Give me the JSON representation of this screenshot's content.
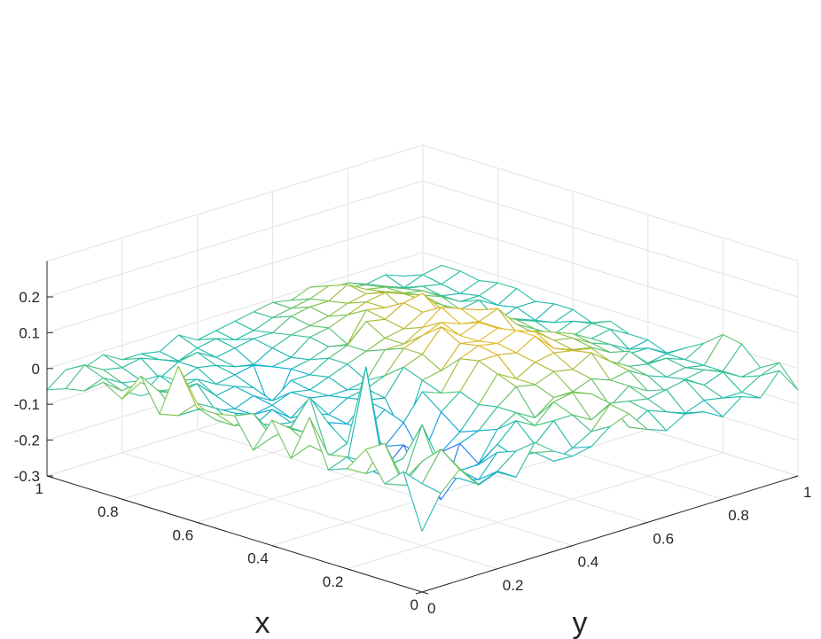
{
  "chart_data": {
    "type": "surface-mesh",
    "xlabel": "x",
    "ylabel": "y",
    "zlabel": "",
    "xlim": [
      0,
      1
    ],
    "ylim": [
      0,
      1
    ],
    "zlim": [
      -0.3,
      0.3
    ],
    "x_ticks": [
      "0",
      "0.2",
      "0.4",
      "0.6",
      "0.8",
      "1"
    ],
    "y_ticks": [
      "0",
      "0.2",
      "0.4",
      "0.6",
      "0.8",
      "1"
    ],
    "z_ticks": [
      "-0.3",
      "-0.2",
      "-0.1",
      "0",
      "0.1",
      "0.2"
    ],
    "grid": true,
    "colormap": "parula",
    "colormap_stops": [
      "#3e26a8",
      "#4755f4",
      "#2a89f4",
      "#0fadd6",
      "#2cc0a5",
      "#86c54d",
      "#d6b52a",
      "#fcce2e",
      "#f9fb0e"
    ],
    "x": [
      0,
      0.05,
      0.1,
      0.15,
      0.2,
      0.25,
      0.3,
      0.35,
      0.4,
      0.45,
      0.5,
      0.55,
      0.6,
      0.65,
      0.7,
      0.75,
      0.8,
      0.85,
      0.9,
      0.95,
      1
    ],
    "y": [
      0,
      0.05,
      0.1,
      0.15,
      0.2,
      0.25,
      0.3,
      0.35,
      0.4,
      0.45,
      0.5,
      0.55,
      0.6,
      0.65,
      0.7,
      0.75,
      0.8,
      0.85,
      0.9,
      0.95,
      1
    ],
    "z": [
      [
        -0.13,
        -0.04,
        0.01,
        -0.05,
        -0.03,
        -0.06,
        0.02,
        -0.02,
        -0.05,
        -0.04,
        0.0,
        0.02,
        -0.04,
        -0.06,
        -0.03,
        -0.04,
        -0.07,
        -0.03,
        -0.05,
        0.01,
        -0.06
      ],
      [
        0.02,
        -0.03,
        0.05,
        -0.02,
        -0.08,
        -0.06,
        -0.02,
        -0.04,
        -0.08,
        -0.06,
        -0.03,
        0.03,
        -0.05,
        -0.02,
        -0.04,
        -0.06,
        -0.04,
        -0.05,
        -0.05,
        -0.02,
        0.0
      ],
      [
        -0.03,
        -0.05,
        0.0,
        -0.06,
        -0.08,
        -0.1,
        -0.04,
        -0.07,
        -0.05,
        0.0,
        0.0,
        -0.03,
        0.0,
        -0.01,
        -0.02,
        -0.01,
        0.0,
        -0.03,
        -0.01,
        -0.04,
        -0.03
      ],
      [
        0.05,
        0.05,
        -0.07,
        0.07,
        -0.06,
        -0.09,
        -0.09,
        -0.05,
        0.0,
        -0.03,
        0.02,
        0.03,
        0.01,
        -0.04,
        0.0,
        -0.03,
        -0.05,
        -0.03,
        -0.02,
        -0.04,
        0.02
      ],
      [
        -0.02,
        -0.05,
        -0.05,
        -0.04,
        -0.03,
        -0.08,
        -0.13,
        -0.12,
        -0.04,
        -0.01,
        -0.04,
        0.0,
        0.0,
        0.02,
        0.0,
        0.01,
        -0.02,
        -0.04,
        -0.03,
        -0.04,
        0.03
      ],
      [
        -0.04,
        -0.02,
        -0.05,
        -0.08,
        -0.12,
        -0.1,
        -0.22,
        -0.08,
        -0.06,
        -0.01,
        0.03,
        0.02,
        0.04,
        0.03,
        0.06,
        0.02,
        -0.01,
        -0.02,
        -0.02,
        -0.04,
        -0.01
      ],
      [
        0.09,
        -0.03,
        -0.08,
        -0.1,
        -0.14,
        -0.18,
        -0.19,
        -0.12,
        -0.08,
        -0.02,
        0.05,
        0.02,
        0.05,
        0.06,
        0.05,
        0.04,
        -0.04,
        0.0,
        -0.05,
        -0.04,
        -0.04
      ],
      [
        -0.04,
        -0.02,
        -0.06,
        -0.1,
        0.15,
        -0.15,
        -0.1,
        -0.15,
        -0.04,
        0.0,
        0.07,
        0.07,
        0.06,
        0.09,
        0.04,
        0.02,
        0.01,
        -0.02,
        -0.04,
        -0.04,
        -0.07
      ],
      [
        0.05,
        0.01,
        -0.02,
        -0.1,
        -0.08,
        -0.1,
        -0.12,
        -0.07,
        0.0,
        -0.02,
        0.06,
        0.08,
        0.07,
        0.09,
        0.07,
        0.03,
        0.02,
        -0.01,
        -0.03,
        -0.06,
        -0.05
      ],
      [
        -0.05,
        -0.03,
        -0.02,
        0.05,
        -0.04,
        -0.12,
        -0.09,
        -0.05,
        -0.14,
        0.0,
        0.01,
        0.07,
        0.06,
        0.08,
        0.04,
        0.04,
        0.02,
        0.0,
        -0.03,
        -0.02,
        -0.05
      ],
      [
        0.03,
        0.02,
        -0.05,
        -0.05,
        -0.03,
        -0.07,
        -0.09,
        -0.04,
        -0.05,
        0.02,
        0.04,
        0.1,
        0.06,
        0.08,
        0.05,
        0.02,
        0.0,
        -0.03,
        -0.04,
        -0.02,
        -0.03
      ],
      [
        0.02,
        -0.03,
        -0.04,
        -0.06,
        -0.07,
        -0.06,
        -0.08,
        -0.05,
        -0.04,
        -0.02,
        0.04,
        0.06,
        0.08,
        0.06,
        0.05,
        0.07,
        0.01,
        -0.02,
        -0.05,
        -0.03,
        -0.05
      ],
      [
        0.02,
        -0.03,
        -0.06,
        -0.08,
        -0.05,
        -0.09,
        -0.05,
        -0.06,
        -0.06,
        -0.05,
        0.02,
        0.02,
        0.05,
        0.09,
        0.07,
        0.05,
        0.02,
        -0.01,
        -0.03,
        -0.05,
        -0.03
      ],
      [
        0.12,
        0.0,
        -0.03,
        -0.06,
        -0.08,
        -0.07,
        -0.05,
        -0.06,
        -0.04,
        -0.02,
        0.0,
        0.02,
        0.03,
        0.06,
        0.04,
        0.02,
        0.01,
        -0.02,
        -0.04,
        -0.06,
        -0.03
      ],
      [
        -0.03,
        -0.05,
        -0.05,
        -0.07,
        -0.08,
        -0.06,
        -0.09,
        -0.05,
        -0.05,
        -0.02,
        0.0,
        0.05,
        0.04,
        0.07,
        0.08,
        0.02,
        -0.01,
        -0.02,
        -0.06,
        -0.04,
        -0.04
      ],
      [
        0.06,
        0.0,
        -0.02,
        -0.01,
        -0.06,
        -0.05,
        -0.07,
        -0.16,
        -0.05,
        -0.04,
        -0.02,
        -0.03,
        0.05,
        0.04,
        0.02,
        0.03,
        0.0,
        -0.03,
        -0.02,
        -0.05,
        -0.02
      ],
      [
        -0.02,
        0.01,
        -0.03,
        -0.04,
        -0.03,
        -0.06,
        -0.05,
        -0.04,
        -0.06,
        -0.05,
        -0.01,
        0.0,
        0.02,
        0.04,
        0.05,
        0.03,
        0.01,
        -0.01,
        -0.04,
        -0.04,
        -0.02
      ],
      [
        0.01,
        -0.03,
        -0.06,
        -0.02,
        -0.05,
        -0.03,
        -0.04,
        -0.06,
        -0.07,
        -0.04,
        -0.02,
        -0.01,
        0.0,
        0.02,
        0.03,
        0.02,
        0.0,
        -0.01,
        -0.04,
        -0.05,
        -0.03
      ],
      [
        -0.03,
        -0.01,
        -0.04,
        -0.05,
        -0.06,
        -0.03,
        -0.02,
        -0.05,
        -0.04,
        -0.03,
        -0.03,
        0.0,
        0.01,
        0.01,
        0.04,
        0.01,
        0.0,
        -0.02,
        -0.03,
        -0.04,
        -0.02
      ],
      [
        -0.04,
        0.01,
        -0.02,
        -0.03,
        -0.02,
        -0.04,
        -0.06,
        -0.04,
        -0.03,
        -0.05,
        -0.04,
        -0.02,
        -0.01,
        0.0,
        0.02,
        0.0,
        -0.01,
        -0.03,
        -0.05,
        -0.03,
        -0.02
      ],
      [
        -0.06,
        -0.02,
        -0.03,
        -0.01,
        -0.04,
        -0.04,
        -0.05,
        -0.02,
        -0.05,
        -0.04,
        -0.03,
        -0.02,
        -0.01,
        -0.02,
        0.0,
        -0.02,
        -0.02,
        -0.04,
        -0.03,
        -0.05,
        -0.08
      ]
    ]
  }
}
